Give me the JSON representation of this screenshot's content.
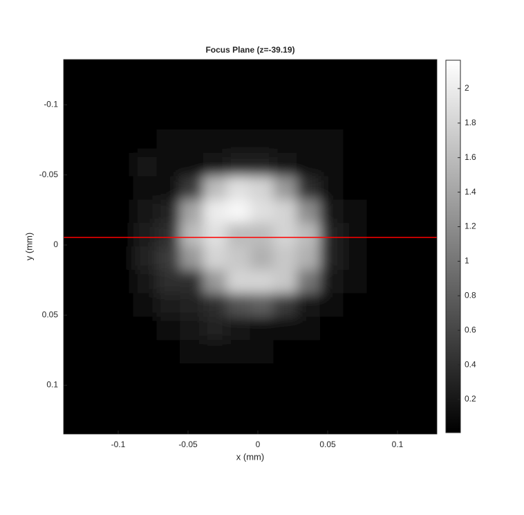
{
  "chart_data": {
    "type": "heatmap",
    "title": "Focus Plane (z=-39.19)",
    "x_label": "x (mm)",
    "y_label": "y (mm)",
    "xlim": [
      -0.1391,
      0.1282
    ],
    "ylim": [
      -0.1323,
      0.1348
    ],
    "y_reversed": true,
    "xticks": [
      -0.1,
      -0.05,
      0,
      0.05,
      0.1
    ],
    "yticks": [
      -0.1,
      -0.05,
      0,
      0.05,
      0.1
    ],
    "colormap": "gray",
    "clim": [
      0.0075,
      2.164
    ],
    "colorbar_ticks": [
      0.2,
      0.4,
      0.6,
      0.8,
      1,
      1.2,
      1.4,
      1.6,
      1.8,
      2
    ],
    "line_y": -0.0054,
    "line_color": "#ff0000",
    "z": [
      [
        0.05,
        0.05,
        0.05,
        0.05,
        0.05,
        0.05,
        0.05,
        0.05,
        0.05,
        0.05,
        0.05,
        0.05,
        0.05,
        0.05,
        0.05,
        0.05
      ],
      [
        0.05,
        0.05,
        0.05,
        0.05,
        0.05,
        0.05,
        0.05,
        0.05,
        0.05,
        0.05,
        0.05,
        0.05,
        0.05,
        0.05,
        0.05,
        0.05
      ],
      [
        0.05,
        0.05,
        0.05,
        0.05,
        0.05,
        0.05,
        0.05,
        0.05,
        0.05,
        0.05,
        0.05,
        0.05,
        0.05,
        0.05,
        0.05,
        0.05
      ],
      [
        0.05,
        0.05,
        0.05,
        0.05,
        0.1,
        0.1,
        0.1,
        0.1,
        0.1,
        0.1,
        0.1,
        0.1,
        0.05,
        0.05,
        0.05,
        0.05
      ],
      [
        0.05,
        0.05,
        0.05,
        0.2,
        0.15,
        0.1,
        0.2,
        0.3,
        0.3,
        0.2,
        0.1,
        0.1,
        0.05,
        0.05,
        0.05,
        0.05
      ],
      [
        0.05,
        0.05,
        0.05,
        0.15,
        0.15,
        0.5,
        1.6,
        1.9,
        1.8,
        1.3,
        0.4,
        0.1,
        0.05,
        0.05,
        0.05,
        0.05
      ],
      [
        0.05,
        0.05,
        0.05,
        0.2,
        0.3,
        1.4,
        2.0,
        2.1,
        1.9,
        1.8,
        1.2,
        0.2,
        0.1,
        0.05,
        0.05,
        0.05
      ],
      [
        0.05,
        0.05,
        0.05,
        0.25,
        0.4,
        1.6,
        1.9,
        1.6,
        1.6,
        1.8,
        1.6,
        0.3,
        0.15,
        0.05,
        0.05,
        0.05
      ],
      [
        0.05,
        0.05,
        0.05,
        0.3,
        0.5,
        1.3,
        1.8,
        1.7,
        1.5,
        1.7,
        1.5,
        0.3,
        0.1,
        0.05,
        0.05,
        0.05
      ],
      [
        0.05,
        0.05,
        0.05,
        0.2,
        0.4,
        0.4,
        1.3,
        1.8,
        1.8,
        1.7,
        1.0,
        0.2,
        0.1,
        0.05,
        0.05,
        0.05
      ],
      [
        0.05,
        0.05,
        0.05,
        0.1,
        0.25,
        0.3,
        0.4,
        0.7,
        0.8,
        0.5,
        0.2,
        0.1,
        0.05,
        0.05,
        0.05,
        0.05
      ],
      [
        0.05,
        0.05,
        0.05,
        0.05,
        0.1,
        0.2,
        0.3,
        0.2,
        0.15,
        0.1,
        0.1,
        0.05,
        0.05,
        0.05,
        0.05,
        0.05
      ],
      [
        0.05,
        0.05,
        0.05,
        0.05,
        0.05,
        0.1,
        0.15,
        0.1,
        0.1,
        0.05,
        0.05,
        0.05,
        0.05,
        0.05,
        0.05,
        0.05
      ],
      [
        0.05,
        0.05,
        0.05,
        0.05,
        0.05,
        0.05,
        0.05,
        0.05,
        0.05,
        0.05,
        0.05,
        0.05,
        0.05,
        0.05,
        0.05,
        0.05
      ],
      [
        0.05,
        0.05,
        0.05,
        0.05,
        0.05,
        0.05,
        0.05,
        0.05,
        0.05,
        0.05,
        0.05,
        0.05,
        0.05,
        0.05,
        0.05,
        0.05
      ],
      [
        0.05,
        0.05,
        0.05,
        0.05,
        0.05,
        0.05,
        0.05,
        0.05,
        0.05,
        0.05,
        0.05,
        0.05,
        0.05,
        0.05,
        0.05,
        0.05
      ]
    ]
  }
}
